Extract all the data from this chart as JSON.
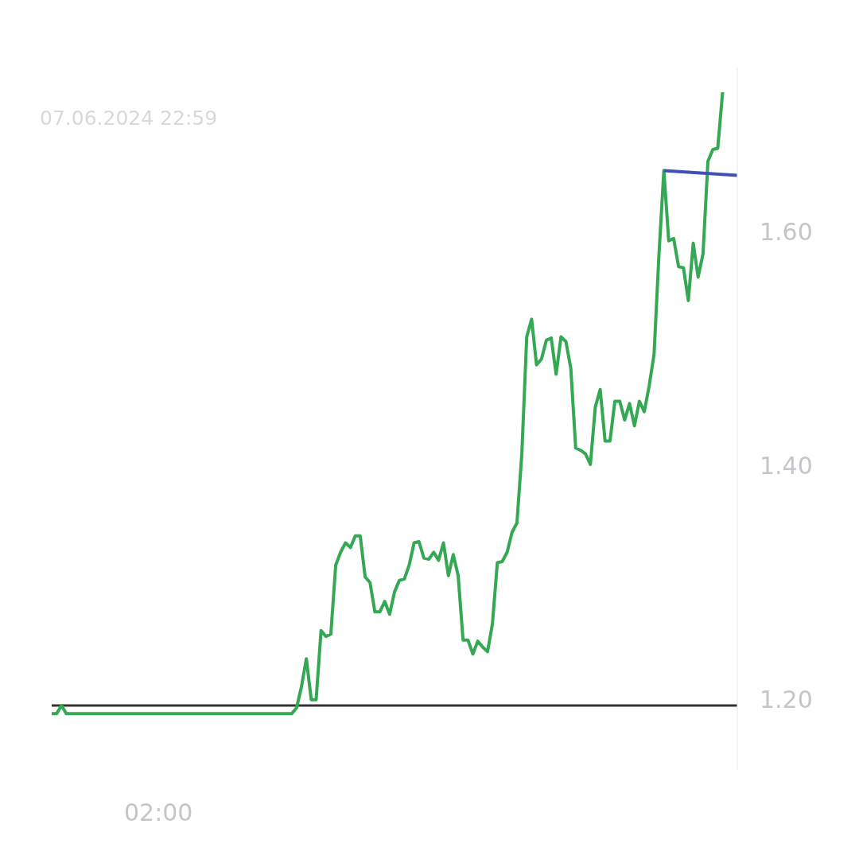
{
  "chart_data": {
    "type": "line",
    "subtitle": "07.06.2024 22:59",
    "annotations": [
      "02:00"
    ],
    "categories": [
      null,
      null,
      null,
      null,
      null,
      null,
      null,
      null,
      null,
      null,
      null,
      null,
      null,
      null,
      null,
      null,
      null,
      null,
      null,
      null,
      null,
      null,
      null,
      null,
      null,
      null,
      null,
      null,
      null,
      null,
      null,
      null,
      null,
      null,
      null,
      null,
      null,
      null,
      null,
      null,
      null,
      null,
      null,
      null,
      null,
      null,
      null,
      null,
      null,
      null,
      null,
      null,
      null,
      null,
      null,
      null,
      null,
      null,
      null,
      null,
      null,
      null,
      null,
      null,
      null,
      null,
      null,
      null,
      null,
      null,
      null,
      null,
      null,
      null,
      null,
      null,
      null,
      null,
      null,
      null,
      null,
      null,
      null,
      null,
      null,
      null,
      null,
      null,
      null,
      null,
      null,
      null,
      null,
      null,
      null,
      null,
      null,
      null,
      null,
      null,
      null,
      null,
      null,
      null,
      null,
      null,
      null,
      null,
      null,
      null,
      null,
      null,
      null,
      null,
      null,
      null,
      null,
      null,
      null,
      null,
      null,
      null,
      null,
      null,
      null,
      null,
      null,
      null,
      null,
      null,
      null,
      null,
      null,
      null,
      null,
      null,
      null,
      null,
      null,
      null,
      null
    ],
    "ylim": [
      1.14,
      1.74
    ],
    "yticks": [
      {
        "value": 1.2,
        "label": "1.20"
      },
      {
        "value": 1.4,
        "label": "1.40"
      },
      {
        "value": 1.6,
        "label": "1.60"
      }
    ],
    "ref_lines": [
      {
        "axis": "y",
        "value": 1.195,
        "color": "#333333"
      }
    ],
    "series": [
      {
        "color": "#34a853",
        "values": [
          1.188,
          1.188,
          1.195,
          1.188,
          1.188,
          1.188,
          1.188,
          1.188,
          1.188,
          1.188,
          1.188,
          1.188,
          1.188,
          1.188,
          1.188,
          1.188,
          1.188,
          1.188,
          1.188,
          1.188,
          1.188,
          1.188,
          1.188,
          1.188,
          1.188,
          1.188,
          1.188,
          1.188,
          1.188,
          1.188,
          1.188,
          1.188,
          1.188,
          1.188,
          1.188,
          1.188,
          1.188,
          1.188,
          1.188,
          1.188,
          1.188,
          1.188,
          1.188,
          1.188,
          1.188,
          1.188,
          1.188,
          1.188,
          1.188,
          1.188,
          1.193,
          1.211,
          1.235,
          1.2,
          1.2,
          1.259,
          1.254,
          1.256,
          1.315,
          1.326,
          1.334,
          1.33,
          1.34,
          1.34,
          1.305,
          1.3,
          1.275,
          1.275,
          1.284,
          1.273,
          1.292,
          1.302,
          1.303,
          1.315,
          1.334,
          1.335,
          1.321,
          1.32,
          1.326,
          1.319,
          1.334,
          1.306,
          1.324,
          1.306,
          1.251,
          1.251,
          1.239,
          1.25,
          1.245,
          1.241,
          1.265,
          1.317,
          1.318,
          1.326,
          1.343,
          1.351,
          1.41,
          1.51,
          1.525,
          1.486,
          1.491,
          1.507,
          1.509,
          1.478,
          1.51,
          1.506,
          1.483,
          1.415,
          1.413,
          1.41,
          1.401,
          1.45,
          1.465,
          1.421,
          1.421,
          1.455,
          1.455,
          1.439,
          1.453,
          1.434,
          1.455,
          1.446,
          1.468,
          1.495,
          1.58,
          1.652,
          1.592,
          1.594,
          1.57,
          1.569,
          1.541,
          1.59,
          1.561,
          1.581,
          1.66,
          1.67,
          1.671,
          1.719,
          null,
          null,
          null
        ]
      },
      {
        "color": "#3f51b5",
        "values": [
          null,
          null,
          null,
          null,
          null,
          null,
          null,
          null,
          null,
          null,
          null,
          null,
          null,
          null,
          null,
          null,
          null,
          null,
          null,
          null,
          null,
          null,
          null,
          null,
          null,
          null,
          null,
          null,
          null,
          null,
          null,
          null,
          null,
          null,
          null,
          null,
          null,
          null,
          null,
          null,
          null,
          null,
          null,
          null,
          null,
          null,
          null,
          null,
          null,
          null,
          null,
          null,
          null,
          null,
          null,
          null,
          null,
          null,
          null,
          null,
          null,
          null,
          null,
          null,
          null,
          null,
          null,
          null,
          null,
          null,
          null,
          null,
          null,
          null,
          null,
          null,
          null,
          null,
          null,
          null,
          null,
          null,
          null,
          null,
          null,
          null,
          null,
          null,
          null,
          null,
          null,
          null,
          null,
          null,
          null,
          null,
          null,
          null,
          null,
          null,
          null,
          null,
          null,
          null,
          null,
          null,
          null,
          null,
          null,
          null,
          null,
          null,
          null,
          null,
          null,
          null,
          null,
          null,
          null,
          null,
          null,
          null,
          null,
          null,
          null,
          1.652,
          null,
          null,
          null,
          null,
          null,
          null,
          null,
          null,
          null,
          null,
          null,
          null,
          null,
          null,
          1.648
        ]
      }
    ]
  }
}
